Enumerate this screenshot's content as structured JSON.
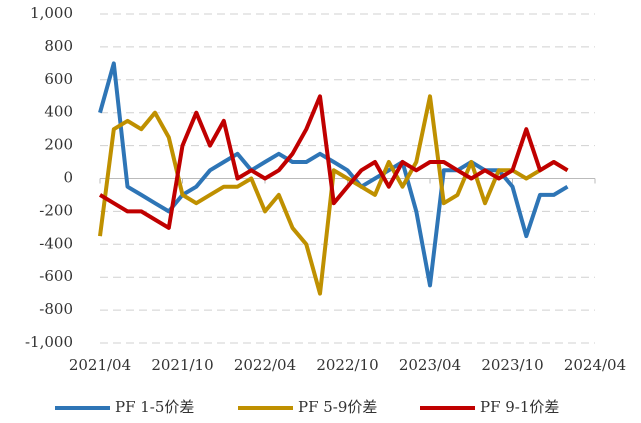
{
  "chart_data": {
    "type": "line",
    "x": [
      "2021/04",
      "2021/05",
      "2021/06",
      "2021/07",
      "2021/08",
      "2021/09",
      "2021/10",
      "2021/11",
      "2021/12",
      "2022/01",
      "2022/02",
      "2022/03",
      "2022/04",
      "2022/05",
      "2022/06",
      "2022/07",
      "2022/08",
      "2022/09",
      "2022/10",
      "2022/11",
      "2022/12",
      "2023/01",
      "2023/02",
      "2023/03",
      "2023/04",
      "2023/05",
      "2023/06",
      "2023/07",
      "2023/08",
      "2023/09",
      "2023/10",
      "2023/11",
      "2023/12",
      "2024/01",
      "2024/02"
    ],
    "series": [
      {
        "name": "PF 1-5价差",
        "color": "#2e75b6",
        "values": [
          400,
          700,
          -50,
          -100,
          -150,
          -200,
          -100,
          -50,
          50,
          100,
          150,
          50,
          100,
          150,
          100,
          100,
          150,
          100,
          50,
          -50,
          0,
          50,
          100,
          -200,
          -650,
          50,
          50,
          100,
          50,
          50,
          -50,
          -350,
          -100,
          -100,
          -50
        ]
      },
      {
        "name": "PF 5-9价差",
        "color": "#bf9000",
        "values": [
          -350,
          300,
          350,
          300,
          400,
          250,
          -100,
          -150,
          -100,
          -50,
          -50,
          0,
          -200,
          -100,
          -300,
          -400,
          -700,
          50,
          0,
          -50,
          -100,
          100,
          -50,
          100,
          500,
          -150,
          -100,
          100,
          -150,
          50,
          50,
          0,
          50,
          100,
          50
        ]
      },
      {
        "name": "PF 9-1价差",
        "color": "#c00000",
        "values": [
          -100,
          -150,
          -200,
          -200,
          -250,
          -300,
          200,
          400,
          200,
          350,
          0,
          50,
          0,
          50,
          150,
          300,
          500,
          -150,
          -50,
          50,
          100,
          -50,
          100,
          50,
          100,
          100,
          50,
          0,
          50,
          0,
          50,
          300,
          50,
          100,
          50
        ]
      }
    ],
    "ylim": [
      -1000,
      1000
    ],
    "yticks": [
      {
        "value": -1000,
        "label": "-1,000"
      },
      -800,
      -600,
      -400,
      -200,
      0,
      200,
      400,
      600,
      800,
      {
        "value": 1000,
        "label": "1,000"
      }
    ],
    "xticks": [
      "2021/04",
      "2021/10",
      "2022/04",
      "2022/10",
      "2023/04",
      "2023/10",
      "2024/04"
    ],
    "grid": true
  }
}
